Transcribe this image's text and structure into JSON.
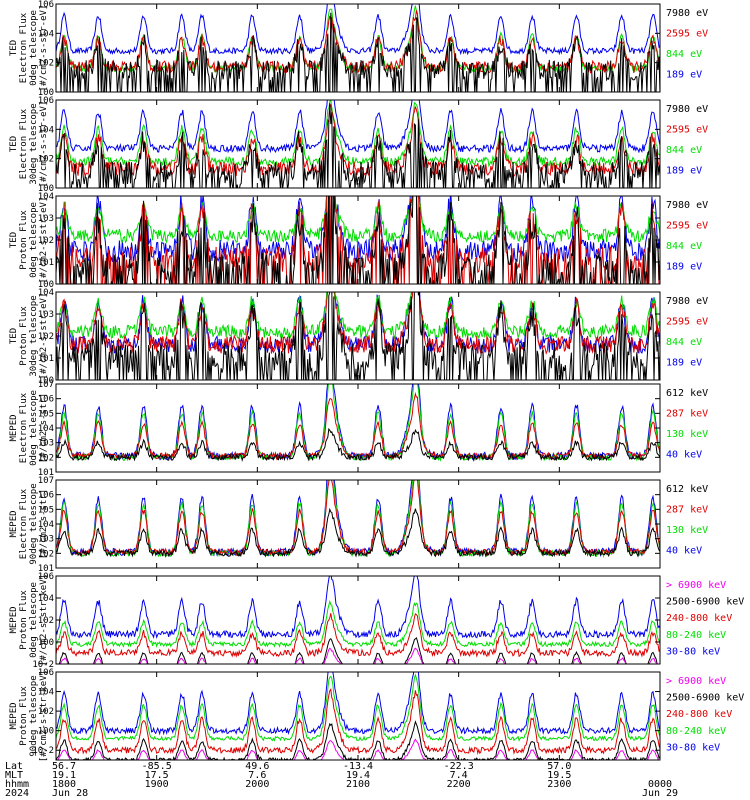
{
  "chart_data": [
    {
      "type": "line",
      "ylabel": [
        "TED",
        "Electron Flux",
        "0deg telescope",
        "[#/cm2-s-str-eV]"
      ],
      "yscale": "log",
      "ylim_exp": [
        0,
        6
      ],
      "yticks": [
        "10^0",
        "10^2",
        "10^4",
        "10^6"
      ],
      "series": [
        {
          "name": "7980 eV",
          "color": "#000000",
          "base": 1.5,
          "amp": 1.8,
          "noise": 0.7,
          "dropouts": true
        },
        {
          "name": "2595 eV",
          "color": "#dd0000",
          "base": 1.7,
          "amp": 1.9,
          "noise": 0.4,
          "dropouts": false
        },
        {
          "name": "844 eV",
          "color": "#00dd00",
          "base": 1.6,
          "amp": 2.2,
          "noise": 0.25,
          "dropouts": false
        },
        {
          "name": "189 eV",
          "color": "#0000ee",
          "base": 2.8,
          "amp": 2.4,
          "noise": 0.2,
          "dropouts": false
        }
      ]
    },
    {
      "type": "line",
      "ylabel": [
        "TED",
        "Electron Flux",
        "30deg telescope",
        "[#/cm2-s-str-eV]"
      ],
      "yscale": "log",
      "ylim_exp": [
        0,
        6
      ],
      "yticks": [
        "10^0",
        "10^2",
        "10^4",
        "10^6"
      ],
      "series": [
        {
          "name": "7980 eV",
          "color": "#000000",
          "base": 1.0,
          "amp": 2.2,
          "noise": 0.8,
          "dropouts": true
        },
        {
          "name": "2595 eV",
          "color": "#dd0000",
          "base": 1.3,
          "amp": 2.1,
          "noise": 0.5,
          "dropouts": false
        },
        {
          "name": "844 eV",
          "color": "#00dd00",
          "base": 1.8,
          "amp": 2.2,
          "noise": 0.3,
          "dropouts": false
        },
        {
          "name": "189 eV",
          "color": "#0000ee",
          "base": 2.7,
          "amp": 2.5,
          "noise": 0.25,
          "dropouts": false
        }
      ]
    },
    {
      "type": "line",
      "ylabel": [
        "TED",
        "Proton Flux",
        "0deg telescope",
        "[#/cm2-s-str-eV]"
      ],
      "yscale": "log",
      "ylim_exp": [
        0,
        4
      ],
      "yticks": [
        "10^0",
        "10^1",
        "10^2",
        "10^3",
        "10^4"
      ],
      "series": [
        {
          "name": "7980 eV",
          "color": "#000000",
          "base": 0.5,
          "amp": 2.4,
          "noise": 0.9,
          "dropouts": true
        },
        {
          "name": "2595 eV",
          "color": "#dd0000",
          "base": 1.1,
          "amp": 2.2,
          "noise": 0.6,
          "dropouts": true
        },
        {
          "name": "844 eV",
          "color": "#00dd00",
          "base": 2.2,
          "amp": 1.3,
          "noise": 0.3,
          "dropouts": false
        },
        {
          "name": "189 eV",
          "color": "#0000ee",
          "base": 1.5,
          "amp": 2.3,
          "noise": 0.5,
          "dropouts": false
        }
      ]
    },
    {
      "type": "line",
      "ylabel": [
        "TED",
        "Proton Flux",
        "30deg telescope",
        "[#/cm2-s-str-eV]"
      ],
      "yscale": "log",
      "ylim_exp": [
        0,
        4
      ],
      "yticks": [
        "10^0",
        "10^1",
        "10^2",
        "10^3",
        "10^4"
      ],
      "series": [
        {
          "name": "7980 eV",
          "color": "#000000",
          "base": 1.0,
          "amp": 2.0,
          "noise": 0.7,
          "dropouts": true
        },
        {
          "name": "2595 eV",
          "color": "#dd0000",
          "base": 1.6,
          "amp": 1.8,
          "noise": 0.4,
          "dropouts": false
        },
        {
          "name": "844 eV",
          "color": "#00dd00",
          "base": 2.2,
          "amp": 1.4,
          "noise": 0.3,
          "dropouts": false
        },
        {
          "name": "189 eV",
          "color": "#0000ee",
          "base": 1.6,
          "amp": 2.0,
          "noise": 0.4,
          "dropouts": false
        }
      ]
    },
    {
      "type": "line",
      "ylabel": [
        "MEPED",
        "Electron Flux",
        "0deg telescope",
        "[#/cm2-s-str]"
      ],
      "yscale": "log",
      "ylim_exp": [
        1,
        7
      ],
      "yticks": [
        "10^1",
        "10^2",
        "10^3",
        "10^4",
        "10^5",
        "10^6",
        "10^7"
      ],
      "series": [
        {
          "name": "612 keV",
          "color": "#000000",
          "base": 2.0,
          "amp": 1.0,
          "noise": 0.2,
          "dropouts": false
        },
        {
          "name": "287 keV",
          "color": "#dd0000",
          "base": 2.1,
          "amp": 2.2,
          "noise": 0.2,
          "dropouts": false
        },
        {
          "name": "130 keV",
          "color": "#00dd00",
          "base": 2.0,
          "amp": 3.0,
          "noise": 0.2,
          "dropouts": false
        },
        {
          "name": "40 keV",
          "color": "#0000ee",
          "base": 2.1,
          "amp": 3.4,
          "noise": 0.25,
          "dropouts": false
        }
      ]
    },
    {
      "type": "line",
      "ylabel": [
        "MEPED",
        "Electron Flux",
        "90deg telescope",
        "[#/cm2-s-str]"
      ],
      "yscale": "log",
      "ylim_exp": [
        1,
        7
      ],
      "yticks": [
        "10^1",
        "10^2",
        "10^3",
        "10^4",
        "10^5",
        "10^6",
        "10^7"
      ],
      "series": [
        {
          "name": "612 keV",
          "color": "#000000",
          "base": 2.0,
          "amp": 1.6,
          "noise": 0.2,
          "dropouts": false
        },
        {
          "name": "287 keV",
          "color": "#dd0000",
          "base": 2.1,
          "amp": 2.8,
          "noise": 0.2,
          "dropouts": false
        },
        {
          "name": "130 keV",
          "color": "#00dd00",
          "base": 2.0,
          "amp": 3.4,
          "noise": 0.2,
          "dropouts": false
        },
        {
          "name": "40 keV",
          "color": "#0000ee",
          "base": 2.1,
          "amp": 3.7,
          "noise": 0.25,
          "dropouts": false
        }
      ]
    },
    {
      "type": "line",
      "ylabel": [
        "MEPED",
        "Proton Flux",
        "0deg telescope",
        "[#/cm2-s-str-keV]"
      ],
      "yscale": "log",
      "ylim_exp": [
        -2,
        6
      ],
      "yticks": [
        "10^-2",
        "10^0",
        "10^2",
        "10^4",
        "10^6"
      ],
      "series": [
        {
          "name": "> 6900 keV",
          "color": "#ee00ee",
          "base": -2.5,
          "amp": 1.0,
          "noise": 0.1,
          "dropouts": false
        },
        {
          "name": "2500-6900 keV",
          "color": "#000000",
          "base": -2.5,
          "amp": 1.5,
          "noise": 0.1,
          "dropouts": false
        },
        {
          "name": "240-800 keV",
          "color": "#dd0000",
          "base": -1.0,
          "amp": 1.8,
          "noise": 0.3,
          "dropouts": false
        },
        {
          "name": "80-240 keV",
          "color": "#00dd00",
          "base": -0.2,
          "amp": 2.0,
          "noise": 0.2,
          "dropouts": false
        },
        {
          "name": "30-80 keV",
          "color": "#0000ee",
          "base": 0.7,
          "amp": 3.0,
          "noise": 0.3,
          "dropouts": false
        }
      ]
    },
    {
      "type": "line",
      "ylabel": [
        "MEPED",
        "Proton Flux",
        "90deg telescope",
        "[#/cm2-s-str-keV]"
      ],
      "yscale": "log",
      "ylim_exp": [
        -3,
        6
      ],
      "yticks": [
        "10^-2",
        "10^0",
        "10^2",
        "10^4",
        "10^6"
      ],
      "series": [
        {
          "name": "> 6900 keV",
          "color": "#ee00ee",
          "base": -3.2,
          "amp": 1.2,
          "noise": 0.1,
          "dropouts": false
        },
        {
          "name": "2500-6900 keV",
          "color": "#000000",
          "base": -3.0,
          "amp": 2.0,
          "noise": 0.2,
          "dropouts": false
        },
        {
          "name": "240-800 keV",
          "color": "#dd0000",
          "base": -2.0,
          "amp": 3.2,
          "noise": 0.3,
          "dropouts": false
        },
        {
          "name": "80-240 keV",
          "color": "#00dd00",
          "base": -0.8,
          "amp": 3.4,
          "noise": 0.2,
          "dropouts": false
        },
        {
          "name": "30-80 keV",
          "color": "#0000ee",
          "base": 0.0,
          "amp": 3.8,
          "noise": 0.3,
          "dropouts": false
        }
      ]
    }
  ],
  "time_axis": {
    "row_labels": [
      "Lat",
      "MLT",
      "hhmm",
      "2024"
    ],
    "columns": [
      {
        "lat": "56.7",
        "mlt": "19.1",
        "hhmm": "1800",
        "date": "Jun 28"
      },
      {
        "lat": "-85.5",
        "mlt": "17.5",
        "hhmm": "1900",
        "date": ""
      },
      {
        "lat": "49.6",
        "mlt": "7.6",
        "hhmm": "2000",
        "date": ""
      },
      {
        "lat": "-13.4",
        "mlt": "19.4",
        "hhmm": "2100",
        "date": ""
      },
      {
        "lat": "-22.3",
        "mlt": "7.4",
        "hhmm": "2200",
        "date": ""
      },
      {
        "lat": "57.0",
        "mlt": "19.5",
        "hhmm": "2300",
        "date": ""
      },
      {
        "lat": "",
        "mlt": "",
        "hhmm": "0000",
        "date": "Jun 29"
      }
    ],
    "time_range_hours": [
      18,
      24
    ],
    "pass_centers_hours": [
      18.08,
      18.42,
      18.87,
      19.25,
      19.45,
      19.95,
      20.42,
      20.72,
      21.2,
      21.58,
      21.92,
      22.42,
      22.73,
      23.17,
      23.62,
      23.93
    ],
    "slow_hump_centers_hours": [
      20.75,
      21.55
    ],
    "instrument_exclusion_note": ""
  }
}
